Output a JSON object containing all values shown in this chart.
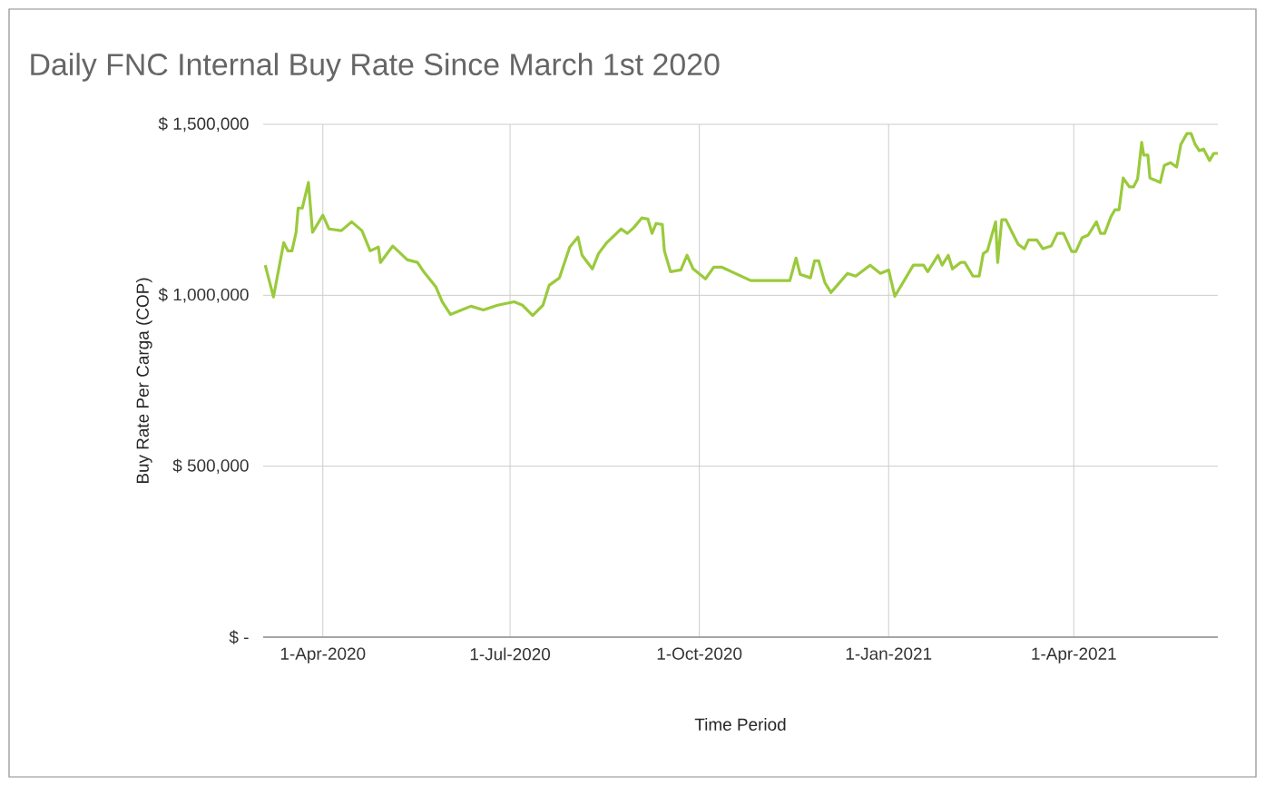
{
  "chart_data": {
    "type": "line",
    "title": "Daily FNC Internal Buy Rate Since March 1st 2020",
    "xlabel": "Time Period",
    "ylabel": "Buy Rate Per Carga (COP)",
    "x": [
      "2020-03-04",
      "2020-03-08",
      "2020-03-13",
      "2020-03-15",
      "2020-03-17",
      "2020-03-19",
      "2020-03-20",
      "2020-03-22",
      "2020-03-25",
      "2020-03-27",
      "2020-04-01",
      "2020-04-04",
      "2020-04-10",
      "2020-04-15",
      "2020-04-20",
      "2020-04-24",
      "2020-04-28",
      "2020-04-29",
      "2020-05-05",
      "2020-05-12",
      "2020-05-17",
      "2020-05-20",
      "2020-05-26",
      "2020-05-29",
      "2020-06-02",
      "2020-06-12",
      "2020-06-18",
      "2020-06-25",
      "2020-07-03",
      "2020-07-07",
      "2020-07-12",
      "2020-07-17",
      "2020-07-20",
      "2020-07-25",
      "2020-07-30",
      "2020-08-03",
      "2020-08-05",
      "2020-08-10",
      "2020-08-13",
      "2020-08-17",
      "2020-08-24",
      "2020-08-27",
      "2020-08-30",
      "2020-09-03",
      "2020-09-06",
      "2020-09-08",
      "2020-09-10",
      "2020-09-13",
      "2020-09-14",
      "2020-09-17",
      "2020-09-22",
      "2020-09-25",
      "2020-09-28",
      "2020-10-04",
      "2020-10-08",
      "2020-10-12",
      "2020-10-26",
      "2020-11-14",
      "2020-11-17",
      "2020-11-19",
      "2020-11-24",
      "2020-11-26",
      "2020-11-28",
      "2020-12-01",
      "2020-12-04",
      "2020-12-07",
      "2020-12-12",
      "2020-12-16",
      "2020-12-23",
      "2020-12-28",
      "2021-01-01",
      "2021-01-04",
      "2021-01-13",
      "2021-01-18",
      "2021-01-20",
      "2021-01-25",
      "2021-01-27",
      "2021-01-30",
      "2021-02-01",
      "2021-02-05",
      "2021-02-07",
      "2021-02-11",
      "2021-02-14",
      "2021-02-16",
      "2021-02-18",
      "2021-02-22",
      "2021-02-23",
      "2021-02-25",
      "2021-02-27",
      "2021-03-02",
      "2021-03-05",
      "2021-03-08",
      "2021-03-10",
      "2021-03-14",
      "2021-03-17",
      "2021-03-21",
      "2021-03-24",
      "2021-03-27",
      "2021-03-31",
      "2021-04-02",
      "2021-04-05",
      "2021-04-08",
      "2021-04-12",
      "2021-04-14",
      "2021-04-16",
      "2021-04-19",
      "2021-04-21",
      "2021-04-23",
      "2021-04-25",
      "2021-04-28",
      "2021-04-30",
      "2021-05-02",
      "2021-05-04",
      "2021-05-05",
      "2021-05-07",
      "2021-05-08",
      "2021-05-13",
      "2021-05-15",
      "2021-05-18",
      "2021-05-21",
      "2021-05-23",
      "2021-05-26",
      "2021-05-28",
      "2021-05-30",
      "2021-06-01",
      "2021-06-03",
      "2021-06-06",
      "2021-06-08",
      "2021-06-10"
    ],
    "series": [
      {
        "color": "#9aca3c",
        "values": [
          1088000,
          995000,
          1154000,
          1130000,
          1130000,
          1184000,
          1255000,
          1255000,
          1330000,
          1184000,
          1234000,
          1194000,
          1189000,
          1215000,
          1189000,
          1130000,
          1141000,
          1096000,
          1144000,
          1104000,
          1096000,
          1069000,
          1024000,
          981000,
          944000,
          968000,
          957000,
          971000,
          981000,
          971000,
          941000,
          971000,
          1029000,
          1051000,
          1141000,
          1170000,
          1117000,
          1077000,
          1122000,
          1154000,
          1194000,
          1181000,
          1197000,
          1226000,
          1223000,
          1181000,
          1210000,
          1207000,
          1130000,
          1069000,
          1074000,
          1117000,
          1077000,
          1048000,
          1082000,
          1082000,
          1043000,
          1043000,
          1109000,
          1061000,
          1051000,
          1101000,
          1101000,
          1037000,
          1008000,
          1029000,
          1064000,
          1056000,
          1088000,
          1064000,
          1074000,
          997000,
          1088000,
          1088000,
          1069000,
          1117000,
          1088000,
          1117000,
          1077000,
          1096000,
          1096000,
          1056000,
          1056000,
          1122000,
          1130000,
          1215000,
          1096000,
          1221000,
          1221000,
          1184000,
          1149000,
          1136000,
          1162000,
          1162000,
          1136000,
          1144000,
          1181000,
          1181000,
          1128000,
          1128000,
          1168000,
          1176000,
          1215000,
          1181000,
          1181000,
          1229000,
          1250000,
          1250000,
          1343000,
          1317000,
          1317000,
          1340000,
          1447000,
          1410000,
          1410000,
          1343000,
          1330000,
          1380000,
          1388000,
          1375000,
          1441000,
          1473000,
          1473000,
          1441000,
          1423000,
          1428000,
          1394000,
          1415000,
          1415000
        ]
      }
    ],
    "xlim": [
      "2020-03-03",
      "2021-06-10"
    ],
    "xticks": [
      {
        "value": "2020-04-01",
        "label": "1-Apr-2020"
      },
      {
        "value": "2020-07-01",
        "label": "1-Jul-2020"
      },
      {
        "value": "2020-10-01",
        "label": "1-Oct-2020"
      },
      {
        "value": "2021-01-01",
        "label": "1-Jan-2021"
      },
      {
        "value": "2021-04-01",
        "label": "1-Apr-2021"
      }
    ],
    "ylim": [
      0,
      1500000
    ],
    "yticks": [
      {
        "value": 0,
        "label": "$ -"
      },
      {
        "value": 500000,
        "label": "$ 500,000"
      },
      {
        "value": 1000000,
        "label": "$ 1,000,000"
      },
      {
        "value": 1500000,
        "label": "$ 1,500,000"
      }
    ],
    "grid": true,
    "legend": false,
    "marker": "none",
    "line_style": "solid"
  }
}
